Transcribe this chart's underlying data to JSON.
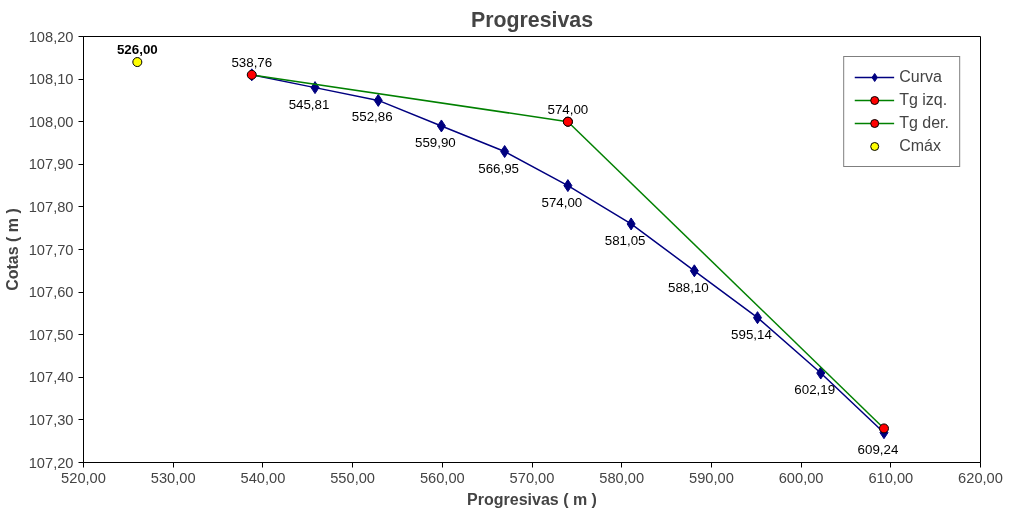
{
  "chart_data": {
    "type": "line",
    "title": "Progresivas",
    "xlabel": "Progresivas ( m )",
    "ylabel": "Cotas ( m )",
    "xlim": [
      520,
      620
    ],
    "ylim": [
      107.2,
      108.2
    ],
    "xticks": [
      {
        "value": 520,
        "label": "520,00"
      },
      {
        "value": 530,
        "label": "530,00"
      },
      {
        "value": 540,
        "label": "540,00"
      },
      {
        "value": 550,
        "label": "550,00"
      },
      {
        "value": 560,
        "label": "560,00"
      },
      {
        "value": 570,
        "label": "570,00"
      },
      {
        "value": 580,
        "label": "580,00"
      },
      {
        "value": 590,
        "label": "590,00"
      },
      {
        "value": 600,
        "label": "600,00"
      },
      {
        "value": 610,
        "label": "610,00"
      },
      {
        "value": 620,
        "label": "620,00"
      }
    ],
    "yticks": [
      {
        "value": 107.2,
        "label": "107,20"
      },
      {
        "value": 107.3,
        "label": "107,30"
      },
      {
        "value": 107.4,
        "label": "107,40"
      },
      {
        "value": 107.5,
        "label": "107,50"
      },
      {
        "value": 107.6,
        "label": "107,60"
      },
      {
        "value": 107.7,
        "label": "107,70"
      },
      {
        "value": 107.8,
        "label": "107,80"
      },
      {
        "value": 107.9,
        "label": "107,90"
      },
      {
        "value": 108.0,
        "label": "108,00"
      },
      {
        "value": 108.1,
        "label": "108,10"
      },
      {
        "value": 108.2,
        "label": "108,20"
      }
    ],
    "grid": false,
    "legend": "top right",
    "series": [
      {
        "name": "Curva",
        "marker": "diamond",
        "color": "#000080",
        "x": [
          538.76,
          545.81,
          552.86,
          559.9,
          566.95,
          574.0,
          581.05,
          588.1,
          595.14,
          602.19,
          609.24
        ],
        "values": [
          108.11,
          108.08,
          108.05,
          107.99,
          107.93,
          107.85,
          107.76,
          107.65,
          107.54,
          107.41,
          107.27
        ]
      },
      {
        "name": "Tg izq.",
        "marker": "circle",
        "color": "#008000",
        "colors": [
          "#ff0000",
          "#ff0000"
        ],
        "x": [
          538.76,
          574.0
        ],
        "values": [
          108.11,
          108.0
        ]
      },
      {
        "name": "Tg der.",
        "marker": "circle",
        "color": "#008000",
        "colors": [
          "#ff0000",
          "#ff0000"
        ],
        "x": [
          574.0,
          609.24
        ],
        "values": [
          108.0,
          107.28
        ]
      },
      {
        "name": "Cmáx",
        "type": "scatter",
        "marker": "circle",
        "color": "#ffff00",
        "x": [
          526.0
        ],
        "values": [
          108.14
        ]
      }
    ],
    "annotations": [
      {
        "text": "538,76",
        "x": 538.76,
        "y": 108.11
      },
      {
        "text": "545,81",
        "x": 545.81,
        "y": 108.08
      },
      {
        "text": "552,86",
        "x": 552.86,
        "y": 108.05
      },
      {
        "text": "559,90",
        "x": 559.9,
        "y": 107.99
      },
      {
        "text": "566,95",
        "x": 566.95,
        "y": 107.93
      },
      {
        "text": "574,00",
        "x": 574.0,
        "y": 107.85
      },
      {
        "text": "581,05",
        "x": 581.05,
        "y": 107.76
      },
      {
        "text": "588,10",
        "x": 588.1,
        "y": 107.65
      },
      {
        "text": "595,14",
        "x": 595.14,
        "y": 107.54
      },
      {
        "text": "602,19",
        "x": 602.19,
        "y": 107.41
      },
      {
        "text": "609,24",
        "x": 609.24,
        "y": 107.27
      },
      {
        "text": "574,00",
        "x": 574.0,
        "y": 108.0
      },
      {
        "text": "526,00",
        "x": 526.0,
        "y": 108.14
      }
    ]
  }
}
